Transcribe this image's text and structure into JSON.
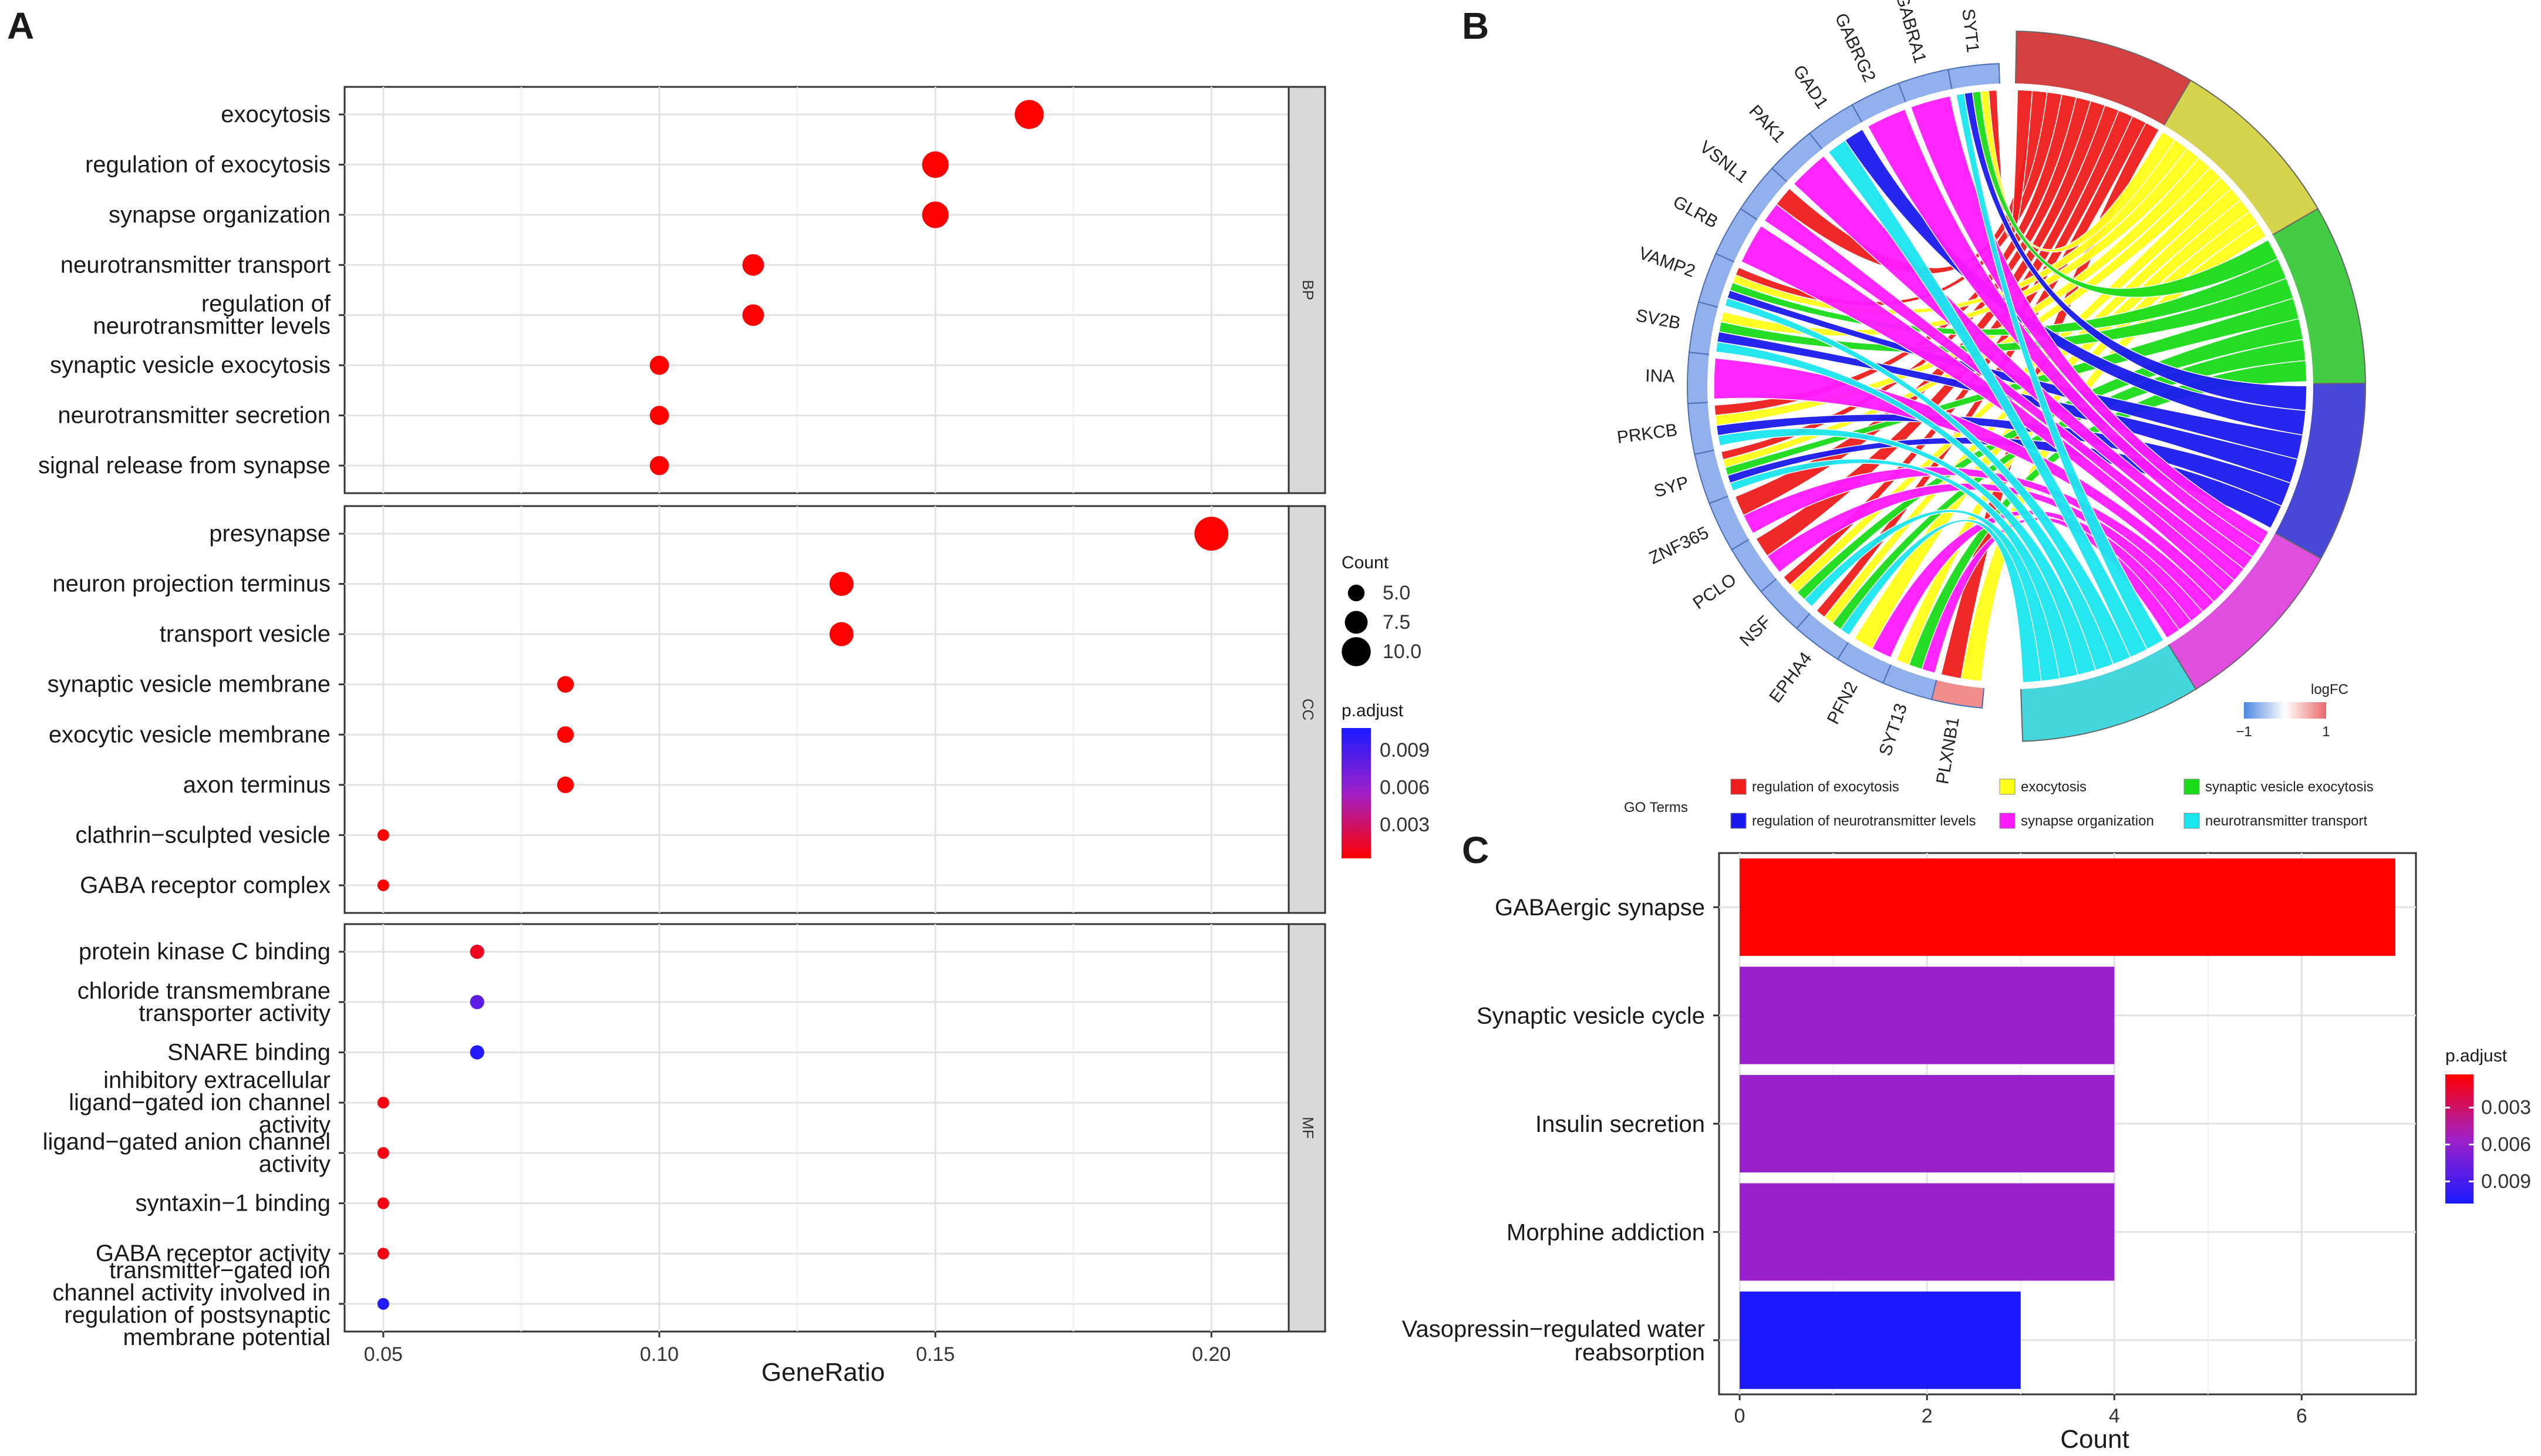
{
  "panel_labels": {
    "a": "A",
    "b": "B",
    "c": "C"
  },
  "chart_data": [
    {
      "panel": "A",
      "type": "scatter",
      "xlabel": "GeneRatio",
      "x_ticks": [
        "0.05",
        "0.10",
        "0.15",
        "0.20"
      ],
      "x_tick_values": [
        0.05,
        0.1,
        0.15,
        0.2
      ],
      "xlim": [
        0.043,
        0.214
      ],
      "facets": [
        {
          "name": "BP",
          "terms": [
            {
              "label": [
                "exocytosis"
              ],
              "x": 0.167,
              "count": 10,
              "p_adjust": 0.0003
            },
            {
              "label": [
                "regulation of exocytosis"
              ],
              "x": 0.15,
              "count": 9,
              "p_adjust": 0.0003
            },
            {
              "label": [
                "synapse organization"
              ],
              "x": 0.15,
              "count": 9,
              "p_adjust": 0.0003
            },
            {
              "label": [
                "neurotransmitter transport"
              ],
              "x": 0.117,
              "count": 7,
              "p_adjust": 0.0003
            },
            {
              "label": [
                "regulation of",
                "neurotransmitter levels"
              ],
              "x": 0.117,
              "count": 7,
              "p_adjust": 0.0003
            },
            {
              "label": [
                "synaptic vesicle exocytosis"
              ],
              "x": 0.1,
              "count": 6,
              "p_adjust": 0.0003
            },
            {
              "label": [
                "neurotransmitter secretion"
              ],
              "x": 0.1,
              "count": 6,
              "p_adjust": 0.0003
            },
            {
              "label": [
                "signal release from synapse"
              ],
              "x": 0.1,
              "count": 6,
              "p_adjust": 0.0003
            }
          ]
        },
        {
          "name": "CC",
          "terms": [
            {
              "label": [
                "presynapse"
              ],
              "x": 0.2,
              "count": 12,
              "p_adjust": 0.0003
            },
            {
              "label": [
                "neuron projection terminus"
              ],
              "x": 0.133,
              "count": 8,
              "p_adjust": 0.0003
            },
            {
              "label": [
                "transport vesicle"
              ],
              "x": 0.133,
              "count": 8,
              "p_adjust": 0.0003
            },
            {
              "label": [
                "synaptic vesicle membrane"
              ],
              "x": 0.083,
              "count": 5,
              "p_adjust": 0.0003
            },
            {
              "label": [
                "exocytic vesicle membrane"
              ],
              "x": 0.083,
              "count": 5,
              "p_adjust": 0.0003
            },
            {
              "label": [
                "axon terminus"
              ],
              "x": 0.083,
              "count": 5,
              "p_adjust": 0.0003
            },
            {
              "label": [
                "clathrin−sculpted vesicle"
              ],
              "x": 0.05,
              "count": 3,
              "p_adjust": 0.0003
            },
            {
              "label": [
                "GABA receptor complex"
              ],
              "x": 0.05,
              "count": 3,
              "p_adjust": 0.0003
            }
          ]
        },
        {
          "name": "MF",
          "terms": [
            {
              "label": [
                "protein kinase C binding"
              ],
              "x": 0.067,
              "count": 4,
              "p_adjust": 0.0012
            },
            {
              "label": [
                "chloride transmembrane",
                "transporter activity"
              ],
              "x": 0.067,
              "count": 4,
              "p_adjust": 0.0082
            },
            {
              "label": [
                "SNARE binding"
              ],
              "x": 0.067,
              "count": 4,
              "p_adjust": 0.0105
            },
            {
              "label": [
                "inhibitory extracellular",
                "ligand−gated ion channel",
                "activity"
              ],
              "x": 0.05,
              "count": 3,
              "p_adjust": 0.0008
            },
            {
              "label": [
                "ligand−gated anion channel",
                "activity"
              ],
              "x": 0.05,
              "count": 3,
              "p_adjust": 0.0008
            },
            {
              "label": [
                "syntaxin−1 binding"
              ],
              "x": 0.05,
              "count": 3,
              "p_adjust": 0.0008
            },
            {
              "label": [
                "GABA receptor activity"
              ],
              "x": 0.05,
              "count": 3,
              "p_adjust": 0.0008
            },
            {
              "label": [
                "transmitter−gated ion",
                "channel activity involved in",
                "regulation of postsynaptic",
                "membrane potential"
              ],
              "x": 0.05,
              "count": 3,
              "p_adjust": 0.0105
            }
          ]
        }
      ],
      "legend_count": {
        "title": "Count",
        "values": [
          5.0,
          7.5,
          10.0
        ],
        "labels": [
          "5.0",
          "7.5",
          "10.0"
        ]
      },
      "legend_padjust": {
        "title": "p.adjust",
        "labels": [
          "0.009",
          "0.006",
          "0.003"
        ],
        "values": [
          0.009,
          0.006,
          0.003
        ],
        "range": [
          0.0003,
          0.0108
        ]
      }
    },
    {
      "panel": "B",
      "type": "chord",
      "genes": [
        "PLXNB1",
        "SYT13",
        "PFN2",
        "EPHA4",
        "NSF",
        "PCLO",
        "ZNF365",
        "SYP",
        "PRKCB",
        "INA",
        "SV2B",
        "VAMP2",
        "GLRB",
        "VSNL1",
        "PAK1",
        "GAD1",
        "GABRG2",
        "GABRA1",
        "SYT1"
      ],
      "logfc_sign": [
        1,
        -1,
        -1,
        -1,
        -1,
        -1,
        -1,
        -1,
        -1,
        -1,
        -1,
        -1,
        -1,
        -1,
        -1,
        -1,
        -1,
        -1,
        -1
      ],
      "terms": [
        {
          "name": "regulation of exocytosis",
          "color": "#ee1c1c",
          "sector_color": "#d44040"
        },
        {
          "name": "exocytosis",
          "color": "#ffff1a",
          "sector_color": "#d6d44c"
        },
        {
          "name": "synaptic vesicle exocytosis",
          "color": "#1adb1a",
          "sector_color": "#44cc44"
        },
        {
          "name": "regulation of neurotransmitter levels",
          "color": "#1a1aee",
          "sector_color": "#4848d6"
        },
        {
          "name": "synapse organization",
          "color": "#ff1aff",
          "sector_color": "#e04ee0"
        },
        {
          "name": "neurotransmitter transport",
          "color": "#1ae6ee",
          "sector_color": "#44d6dc"
        }
      ],
      "links": [
        [
          0,
          0
        ],
        [
          0,
          1
        ],
        [
          1,
          1
        ],
        [
          1,
          2
        ],
        [
          1,
          4
        ],
        [
          2,
          1
        ],
        [
          2,
          4
        ],
        [
          3,
          0
        ],
        [
          3,
          1
        ],
        [
          3,
          2
        ],
        [
          3,
          5
        ],
        [
          4,
          0
        ],
        [
          4,
          1
        ],
        [
          4,
          2
        ],
        [
          4,
          5
        ],
        [
          5,
          0
        ],
        [
          5,
          4
        ],
        [
          6,
          0
        ],
        [
          6,
          4
        ],
        [
          7,
          0
        ],
        [
          7,
          1
        ],
        [
          7,
          2
        ],
        [
          7,
          3
        ],
        [
          7,
          5
        ],
        [
          8,
          0
        ],
        [
          8,
          1
        ],
        [
          8,
          3
        ],
        [
          8,
          5
        ],
        [
          9,
          4
        ],
        [
          10,
          1
        ],
        [
          10,
          2
        ],
        [
          10,
          3
        ],
        [
          10,
          5
        ],
        [
          11,
          0
        ],
        [
          11,
          1
        ],
        [
          11,
          2
        ],
        [
          11,
          3
        ],
        [
          11,
          5
        ],
        [
          12,
          4
        ],
        [
          13,
          0
        ],
        [
          13,
          4
        ],
        [
          14,
          4
        ],
        [
          15,
          3
        ],
        [
          15,
          5
        ],
        [
          16,
          4
        ],
        [
          17,
          4
        ],
        [
          18,
          0
        ],
        [
          18,
          1
        ],
        [
          18,
          2
        ],
        [
          18,
          3
        ],
        [
          18,
          5
        ]
      ],
      "legend_logfc": {
        "title": "logFC",
        "min_label": "−1",
        "max_label": "1"
      },
      "legend_go": {
        "title": "GO Terms"
      }
    },
    {
      "panel": "C",
      "type": "bar",
      "orientation": "horizontal",
      "categories": [
        "GABAergic synapse",
        "Synaptic vesicle cycle",
        "Insulin secretion",
        "Morphine addiction",
        "Vasopressin−regulated water\nreabsorption"
      ],
      "category_lines": [
        [
          "GABAergic synapse"
        ],
        [
          "Synaptic vesicle cycle"
        ],
        [
          "Insulin secretion"
        ],
        [
          "Morphine addiction"
        ],
        [
          "Vasopressin−regulated water",
          "reabsorption"
        ]
      ],
      "values": [
        7,
        4,
        4,
        4,
        3
      ],
      "p_adjust": [
        0.0003,
        0.0058,
        0.0058,
        0.0058,
        0.0108
      ],
      "xlabel": "Count",
      "x_ticks": [
        "0",
        "2",
        "4",
        "6"
      ],
      "x_tick_values": [
        0,
        2,
        4,
        6
      ],
      "xlim": [
        -0.22,
        7.22
      ],
      "legend_padjust": {
        "title": "p.adjust",
        "labels": [
          "0.003",
          "0.006",
          "0.009"
        ],
        "values": [
          0.003,
          0.006,
          0.009
        ],
        "range": [
          0.0003,
          0.0108
        ]
      }
    }
  ]
}
